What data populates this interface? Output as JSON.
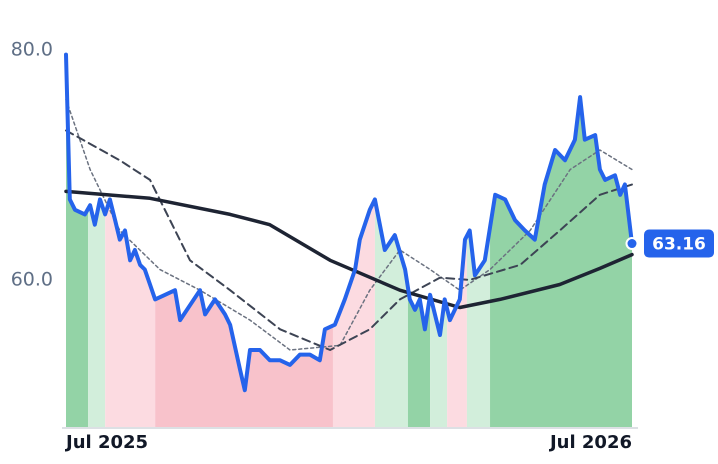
{
  "chart_data": {
    "type": "line",
    "xlim": [
      0,
      12
    ],
    "ylim": [
      47.2,
      80
    ],
    "xticks": [
      {
        "value": 0,
        "label": "Jul 2025"
      },
      {
        "value": 12,
        "label": "Jul 2026"
      }
    ],
    "yticks": [
      {
        "value": 60,
        "label": "60.0"
      },
      {
        "value": 80,
        "label": "80.0"
      }
    ],
    "grid": false,
    "bands": [
      {
        "from": 0,
        "to": 0.47,
        "color": "#93d3a6"
      },
      {
        "from": 0.47,
        "to": 0.83,
        "color": "#d2eedb"
      },
      {
        "from": 0.83,
        "to": 1.89,
        "color": "#fcdbe1"
      },
      {
        "from": 1.89,
        "to": 5.66,
        "color": "#f8c2cb"
      },
      {
        "from": 5.66,
        "to": 6.55,
        "color": "#fcdbe1"
      },
      {
        "from": 6.55,
        "to": 7.25,
        "color": "#d2eedb"
      },
      {
        "from": 7.25,
        "to": 7.72,
        "color": "#93d3a6"
      },
      {
        "from": 7.72,
        "to": 8.08,
        "color": "#d2eedb"
      },
      {
        "from": 8.08,
        "to": 8.5,
        "color": "#fcdbe1"
      },
      {
        "from": 8.5,
        "to": 8.99,
        "color": "#d2eedb"
      },
      {
        "from": 8.99,
        "to": 12,
        "color": "#93d3a6"
      }
    ],
    "series": [
      {
        "color": "#2563eb",
        "style": "solid",
        "width": 4,
        "x": [
          0,
          0.08,
          0.19,
          0.4,
          0.51,
          0.61,
          0.72,
          0.83,
          0.93,
          1.04,
          1.14,
          1.25,
          1.36,
          1.46,
          1.57,
          1.67,
          1.78,
          1.89,
          2.1,
          2.31,
          2.42,
          2.63,
          2.84,
          2.95,
          3.16,
          3.37,
          3.48,
          3.69,
          3.79,
          3.9,
          4.11,
          4.32,
          4.54,
          4.75,
          4.96,
          5.17,
          5.38,
          5.49,
          5.7,
          5.91,
          6.13,
          6.23,
          6.44,
          6.55,
          6.76,
          6.97,
          7.19,
          7.29,
          7.4,
          7.5,
          7.61,
          7.72,
          7.93,
          8.03,
          8.14,
          8.35,
          8.46,
          8.56,
          8.67,
          8.88,
          9.1,
          9.31,
          9.52,
          9.73,
          9.94,
          10.15,
          10.37,
          10.58,
          10.79,
          10.9,
          11,
          11.22,
          11.32,
          11.43,
          11.64,
          11.75,
          11.85,
          12
        ],
        "values": [
          79.6,
          67,
          66.1,
          65.7,
          66.5,
          64.8,
          67,
          65.7,
          67,
          65.2,
          63.5,
          64.3,
          61.7,
          62.6,
          61.3,
          60.9,
          59.6,
          58.3,
          58.7,
          59.1,
          56.5,
          57.8,
          59.1,
          57,
          58.3,
          57,
          56.1,
          52.2,
          50.4,
          53.9,
          53.9,
          53,
          53,
          52.6,
          53.5,
          53.5,
          53,
          55.7,
          56.1,
          58.3,
          60.9,
          63.5,
          66.1,
          67,
          62.6,
          63.9,
          60.9,
          58.3,
          57.4,
          58.3,
          55.7,
          58.7,
          55.2,
          58.3,
          56.5,
          58.3,
          63.5,
          64.3,
          60.4,
          61.7,
          67.4,
          67,
          65.2,
          64.3,
          63.5,
          68.3,
          71.3,
          70.4,
          72.2,
          75.9,
          72.2,
          72.6,
          69.6,
          68.7,
          69.1,
          67.4,
          68.3,
          63.16
        ]
      },
      {
        "color": "#1e2433",
        "style": "solid",
        "width": 3.5,
        "x": [
          0,
          1.78,
          3.48,
          4.32,
          5.6,
          7.08,
          8.35,
          9.2,
          10.47,
          11.32,
          12
        ],
        "values": [
          67.7,
          67.1,
          65.7,
          64.8,
          61.7,
          59.1,
          57.6,
          58.3,
          59.6,
          61,
          62.2
        ]
      },
      {
        "color": "#3d4454",
        "style": "dashed",
        "width": 2,
        "x": [
          0,
          1.14,
          1.78,
          2.63,
          3.48,
          4.54,
          5.6,
          6.44,
          7.08,
          7.93,
          8.56,
          9.63,
          10.47,
          11.32,
          12
        ],
        "values": [
          73,
          70.4,
          68.7,
          61.7,
          59.1,
          55.7,
          53.9,
          55.7,
          58.3,
          60.2,
          60,
          61.3,
          64.3,
          67.4,
          68.3
        ]
      },
      {
        "color": "#6b7280",
        "style": "dotted",
        "width": 1.5,
        "x": [
          0,
          0.51,
          1.14,
          1.99,
          2.84,
          3.9,
          4.75,
          5.81,
          6.44,
          7.08,
          7.72,
          8.35,
          8.99,
          9.84,
          10.69,
          11.32,
          12
        ],
        "values": [
          75.7,
          69.6,
          64.3,
          60.9,
          59.1,
          56.5,
          53.9,
          54.3,
          59.1,
          62.6,
          60.9,
          59.1,
          60.9,
          64.3,
          69.6,
          71.3,
          69.6
        ]
      }
    ]
  }
}
